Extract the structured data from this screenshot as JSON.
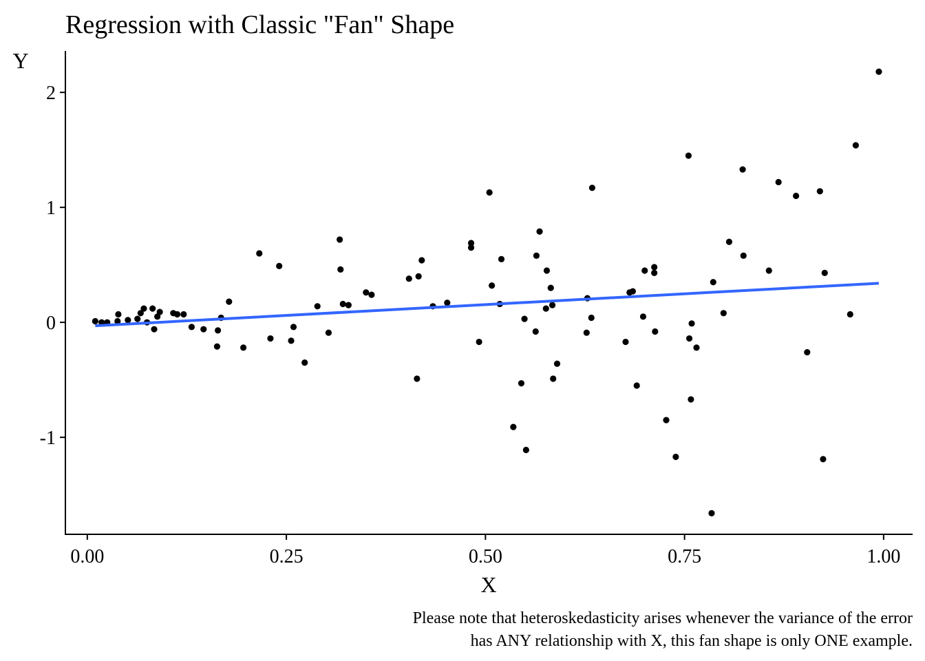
{
  "chart_data": {
    "type": "scatter",
    "title": "Regression with Classic \"Fan\" Shape",
    "xlabel": "X",
    "ylabel": "Y",
    "caption": [
      "Please note that heteroskedasticity arises whenever the variance of the error",
      "has ANY relationship with X, this fan shape is only ONE example."
    ],
    "xlim": [
      -0.0275,
      1.0364
    ],
    "ylim": [
      -1.8435,
      2.3605
    ],
    "xticks": [
      0.0,
      0.25,
      0.5,
      0.75,
      1.0
    ],
    "xtick_labels": [
      "0.00",
      "0.25",
      "0.50",
      "0.75",
      "1.00"
    ],
    "yticks": [
      -1,
      0,
      1,
      2
    ],
    "ytick_labels": [
      "-1",
      "0",
      "1",
      "2"
    ],
    "grid": false,
    "colors": {
      "points": "#000000",
      "fit_line": "#3366FF",
      "axis": "#000000"
    },
    "series": [
      {
        "type": "scatter",
        "x": [
          0.01,
          0.018,
          0.025,
          0.038,
          0.039,
          0.051,
          0.063,
          0.067,
          0.071,
          0.075,
          0.082,
          0.084,
          0.088,
          0.091,
          0.108,
          0.113,
          0.121,
          0.131,
          0.146,
          0.163,
          0.164,
          0.168,
          0.178,
          0.196,
          0.216,
          0.23,
          0.241,
          0.256,
          0.259,
          0.273,
          0.289,
          0.303,
          0.317,
          0.318,
          0.321,
          0.328,
          0.35,
          0.357,
          0.404,
          0.414,
          0.416,
          0.42,
          0.434,
          0.452,
          0.482,
          0.482,
          0.492,
          0.505,
          0.508,
          0.518,
          0.52,
          0.535,
          0.545,
          0.549,
          0.551,
          0.563,
          0.564,
          0.568,
          0.576,
          0.577,
          0.582,
          0.584,
          0.585,
          0.59,
          0.627,
          0.628,
          0.633,
          0.634,
          0.676,
          0.681,
          0.685,
          0.69,
          0.698,
          0.7,
          0.712,
          0.712,
          0.713,
          0.727,
          0.739,
          0.755,
          0.756,
          0.758,
          0.759,
          0.765,
          0.784,
          0.786,
          0.799,
          0.806,
          0.823,
          0.824,
          0.856,
          0.868,
          0.89,
          0.904,
          0.92,
          0.924,
          0.926,
          0.958,
          0.965,
          0.994
        ],
        "y": [
          0.01,
          0.0,
          0.0,
          0.01,
          0.07,
          0.02,
          0.03,
          0.08,
          0.12,
          0.0,
          0.12,
          -0.06,
          0.05,
          0.09,
          0.08,
          0.07,
          0.07,
          -0.04,
          -0.06,
          -0.21,
          -0.07,
          0.04,
          0.18,
          -0.22,
          0.6,
          -0.14,
          0.49,
          -0.16,
          -0.04,
          -0.35,
          0.14,
          -0.09,
          0.72,
          0.46,
          0.16,
          0.15,
          0.26,
          0.24,
          0.38,
          -0.49,
          0.4,
          0.54,
          0.14,
          0.17,
          0.69,
          0.65,
          -0.17,
          1.13,
          0.32,
          0.16,
          0.55,
          -0.91,
          -0.53,
          0.03,
          -1.11,
          -0.08,
          0.58,
          0.79,
          0.12,
          0.45,
          0.3,
          0.15,
          -0.49,
          -0.36,
          -0.09,
          0.21,
          0.04,
          1.17,
          -0.17,
          0.26,
          0.27,
          -0.55,
          0.05,
          0.45,
          0.48,
          0.43,
          -0.08,
          -0.85,
          -1.17,
          1.45,
          -0.14,
          -0.67,
          -0.01,
          -0.22,
          -1.66,
          0.35,
          0.08,
          0.7,
          1.33,
          0.58,
          0.45,
          1.22,
          1.1,
          -0.26,
          1.14,
          -1.19,
          0.43,
          0.07,
          1.54,
          2.18
        ]
      },
      {
        "type": "line",
        "x": [
          0.01,
          0.994
        ],
        "y": [
          -0.03,
          0.34
        ]
      }
    ]
  }
}
